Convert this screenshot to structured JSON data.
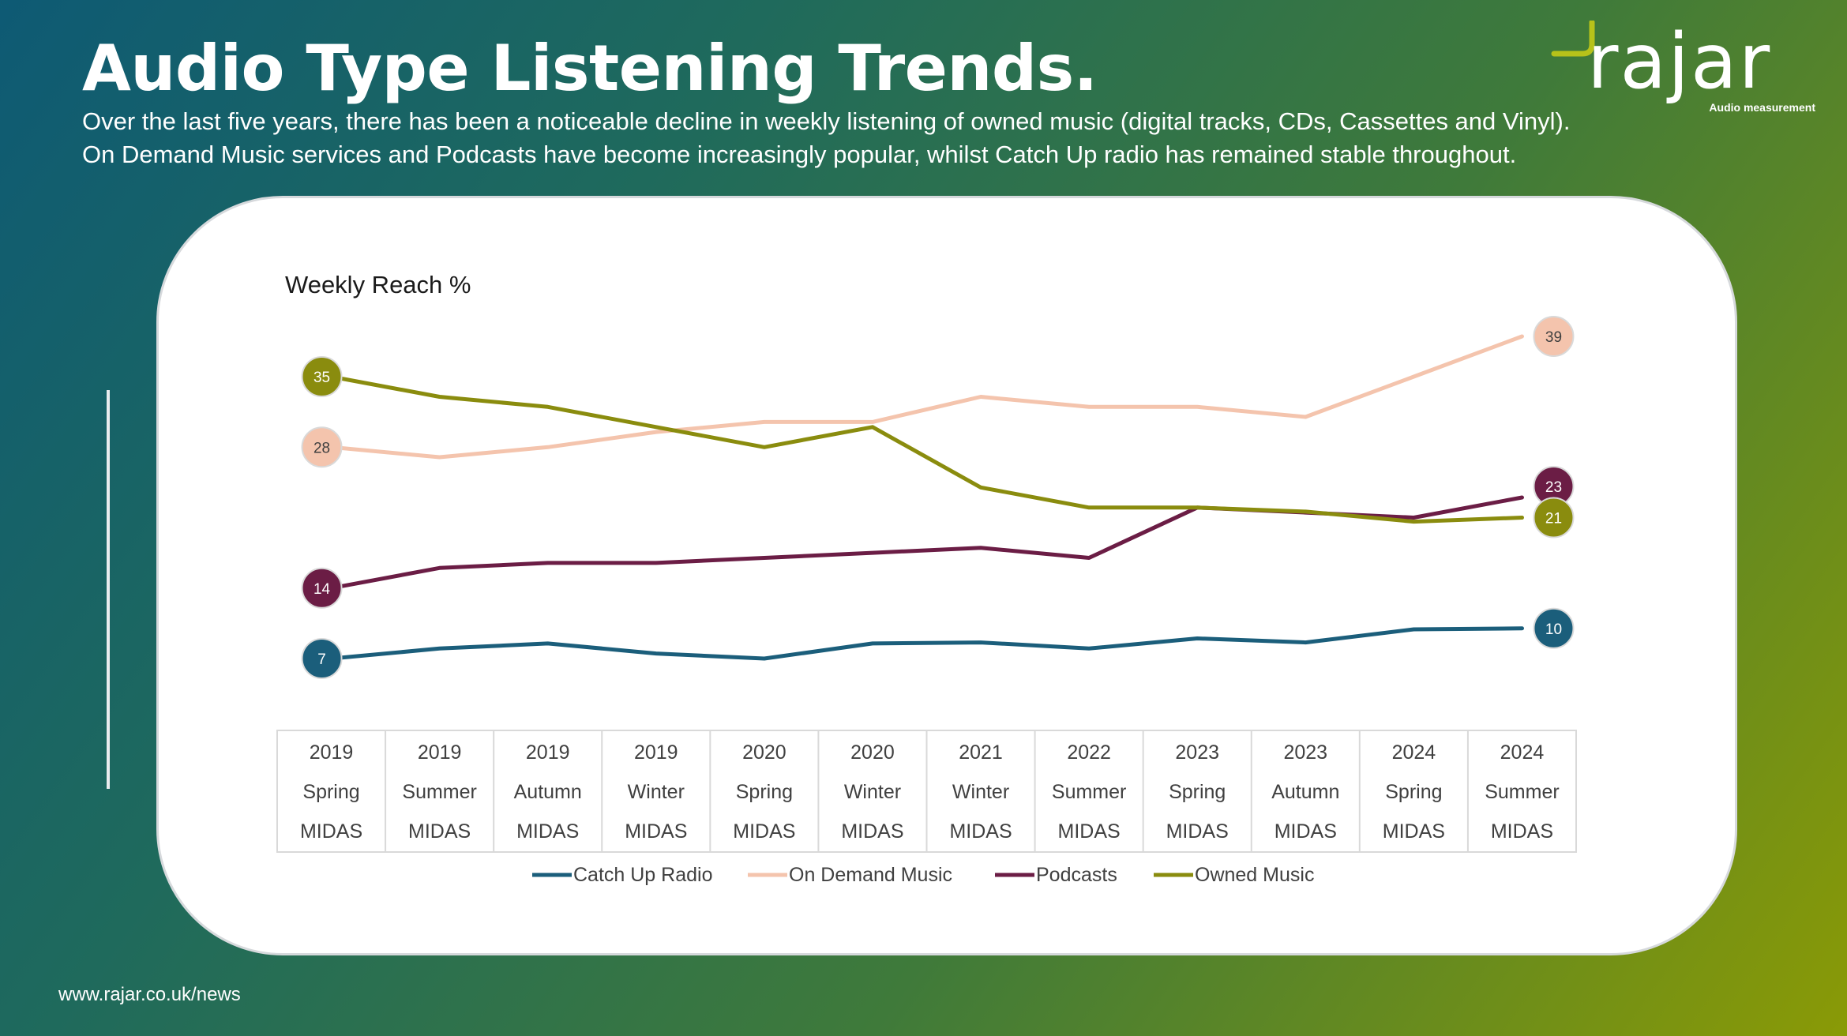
{
  "page": {
    "title": "Audio Type Listening Trends.",
    "subtitle_lines": [
      "Over the last five years, there has been a noticeable decline in weekly listening of owned music (digital tracks, CDs, Cassettes and Vinyl).",
      "On Demand Music services and Podcasts have become increasingly popular, whilst Catch Up radio has remained stable throughout."
    ],
    "footer": "www.rajar.co.uk/news"
  },
  "logo": {
    "wordmark": "rajar",
    "tagline": "Audio measurement"
  },
  "chart_data": {
    "type": "line",
    "title": "Weekly Reach %",
    "categories": [
      [
        "2019",
        "Spring",
        "MIDAS"
      ],
      [
        "2019",
        "Summer",
        "MIDAS"
      ],
      [
        "2019",
        "Autumn",
        "MIDAS"
      ],
      [
        "2019",
        "Winter",
        "MIDAS"
      ],
      [
        "2020",
        "Spring",
        "MIDAS"
      ],
      [
        "2020",
        "Winter",
        "MIDAS"
      ],
      [
        "2021",
        "Winter",
        "MIDAS"
      ],
      [
        "2022",
        "Summer",
        "MIDAS"
      ],
      [
        "2023",
        "Spring",
        "MIDAS"
      ],
      [
        "2023",
        "Autumn",
        "MIDAS"
      ],
      [
        "2024",
        "Spring",
        "MIDAS"
      ],
      [
        "2024",
        "Summer",
        "MIDAS"
      ]
    ],
    "series": [
      {
        "name": "Catch Up Radio",
        "color": "#1b5e7b",
        "values": [
          7,
          8,
          8.5,
          7.5,
          7,
          8.5,
          8.6,
          8,
          9,
          8.6,
          9.9,
          10
        ],
        "labels": [
          {
            "index": 0,
            "text": "7"
          },
          {
            "index": 11,
            "text": "10"
          }
        ]
      },
      {
        "name": "On Demand Music",
        "color": "#f4c4ad",
        "values": [
          28,
          27,
          28,
          29.5,
          30.5,
          30.5,
          33,
          32,
          32,
          31,
          35,
          39
        ],
        "labels": [
          {
            "index": 0,
            "text": "28"
          },
          {
            "index": 11,
            "text": "39"
          }
        ]
      },
      {
        "name": "Podcasts",
        "color": "#6b1d45",
        "values": [
          14,
          16,
          16.5,
          16.5,
          17,
          17.5,
          18,
          17,
          22,
          21.5,
          21,
          23
        ],
        "labels": [
          {
            "index": 0,
            "text": "14"
          },
          {
            "index": 11,
            "text": "23"
          }
        ]
      },
      {
        "name": "Owned Music",
        "color": "#8a8c0e",
        "values": [
          35,
          33,
          32,
          30,
          28,
          30,
          24,
          22,
          22,
          21.6,
          20.6,
          21
        ],
        "labels": [
          {
            "index": 0,
            "text": "35"
          },
          {
            "index": 11,
            "text": "21"
          }
        ]
      }
    ],
    "legend_position": "bottom",
    "grid": false
  }
}
